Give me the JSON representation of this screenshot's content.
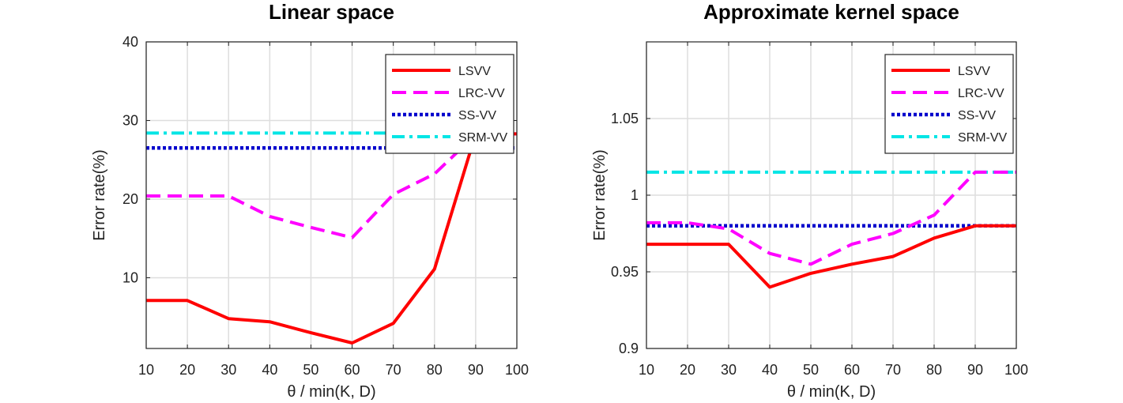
{
  "chart_data": [
    {
      "type": "line",
      "title": "Linear space",
      "xlabel": "θ / min(K, D)",
      "ylabel": "Error rate(%)",
      "xlim": [
        10,
        100
      ],
      "ylim": [
        1,
        40
      ],
      "xticks": [
        "10",
        "20",
        "30",
        "40",
        "50",
        "60",
        "70",
        "80",
        "90",
        "100"
      ],
      "yticks": [
        "10",
        "20",
        "30",
        "40"
      ],
      "grid": true,
      "legend": "top-right",
      "x": [
        10,
        20,
        30,
        40,
        50,
        60,
        70,
        80,
        90,
        100
      ],
      "series": [
        {
          "name": "LSVV",
          "values": [
            7.1,
            7.1,
            4.8,
            4.4,
            3.0,
            1.7,
            4.2,
            11.1,
            28.3,
            28.3
          ],
          "color": "#ff0000",
          "style": "solid"
        },
        {
          "name": "LRC-VV",
          "values": [
            20.4,
            20.4,
            20.4,
            17.8,
            16.4,
            15.1,
            20.6,
            23.2,
            28.2,
            28.3
          ],
          "color": "#ff00ff",
          "style": "dashed"
        },
        {
          "name": "SS-VV",
          "values": [
            26.5,
            26.5,
            26.5,
            26.5,
            26.5,
            26.5,
            26.5,
            26.5,
            26.5,
            26.5
          ],
          "color": "#0000cc",
          "style": "dotted"
        },
        {
          "name": "SRM-VV",
          "values": [
            28.4,
            28.4,
            28.4,
            28.4,
            28.4,
            28.4,
            28.4,
            28.4,
            28.4,
            28.4
          ],
          "color": "#00e5e5",
          "style": "dashdot"
        }
      ]
    },
    {
      "type": "line",
      "title": "Approximate kernel space",
      "xlabel": "θ / min(K, D)",
      "ylabel": "Error rate(%)",
      "xlim": [
        10,
        100
      ],
      "ylim": [
        0.9,
        1.1
      ],
      "xticks": [
        "10",
        "20",
        "30",
        "40",
        "50",
        "60",
        "70",
        "80",
        "90",
        "100"
      ],
      "yticks": [
        "0.9",
        "0.95",
        "1",
        "1.05"
      ],
      "grid": true,
      "legend": "top-right",
      "x": [
        10,
        20,
        30,
        40,
        50,
        60,
        70,
        80,
        90,
        100
      ],
      "series": [
        {
          "name": "LSVV",
          "values": [
            0.968,
            0.968,
            0.968,
            0.94,
            0.949,
            0.955,
            0.96,
            0.972,
            0.98,
            0.98
          ],
          "color": "#ff0000",
          "style": "solid"
        },
        {
          "name": "LRC-VV",
          "values": [
            0.982,
            0.982,
            0.978,
            0.962,
            0.955,
            0.968,
            0.975,
            0.987,
            1.015,
            1.015
          ],
          "color": "#ff00ff",
          "style": "dashed"
        },
        {
          "name": "SS-VV",
          "values": [
            0.98,
            0.98,
            0.98,
            0.98,
            0.98,
            0.98,
            0.98,
            0.98,
            0.98,
            0.98
          ],
          "color": "#0000cc",
          "style": "dotted"
        },
        {
          "name": "SRM-VV",
          "values": [
            1.015,
            1.015,
            1.015,
            1.015,
            1.015,
            1.015,
            1.015,
            1.015,
            1.015,
            1.015
          ],
          "color": "#00e5e5",
          "style": "dashdot"
        }
      ]
    }
  ]
}
